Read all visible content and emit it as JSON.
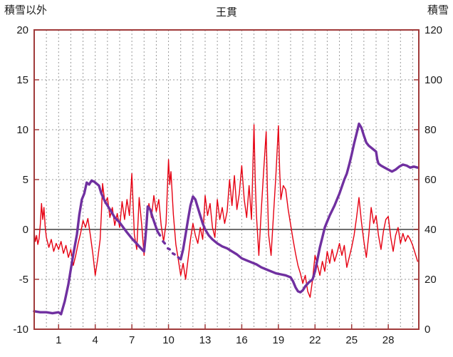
{
  "header": {
    "title": "王貫",
    "left_axis_title": "積雪以外",
    "right_axis_title": "積雪"
  },
  "chart_data": {
    "type": "line",
    "title": "王貫",
    "legend_position": "none",
    "grid": true,
    "colors": {
      "frame": "#a03a3a",
      "grid": "#9a9a9a",
      "zero_line": "#707070",
      "text": "#1a1a1a",
      "background": "#ffffff"
    },
    "x_axis": {
      "min": -1,
      "max": 30.5,
      "tick_labels": [
        1,
        4,
        7,
        10,
        13,
        16,
        19,
        22,
        25,
        28
      ],
      "gridline_start": 0,
      "gridline_end": 30,
      "gridline_step": 1
    },
    "left_axis": {
      "label": "積雪以外",
      "min": -10,
      "max": 20,
      "ticks": [
        20,
        15,
        10,
        5,
        0,
        -5,
        -10
      ]
    },
    "right_axis": {
      "label": "積雪",
      "min": 0,
      "max": 120,
      "ticks": [
        120,
        100,
        80,
        60,
        40,
        20,
        0
      ]
    },
    "series": [
      {
        "name": "積雪以外",
        "axis": "left",
        "color": "#e60012",
        "width": 1.4,
        "points": [
          [
            -1.0,
            -0.3
          ],
          [
            -0.9,
            -1.2
          ],
          [
            -0.8,
            -0.6
          ],
          [
            -0.7,
            -1.5
          ],
          [
            -0.6,
            -0.9
          ],
          [
            -0.5,
            0.5
          ],
          [
            -0.4,
            2.6
          ],
          [
            -0.3,
            1.0
          ],
          [
            -0.2,
            2.2
          ],
          [
            -0.1,
            0.3
          ],
          [
            0.0,
            -0.8
          ],
          [
            0.2,
            -1.8
          ],
          [
            0.4,
            -1.0
          ],
          [
            0.6,
            -2.2
          ],
          [
            0.8,
            -1.4
          ],
          [
            1.0,
            -2.0
          ],
          [
            1.2,
            -1.2
          ],
          [
            1.4,
            -2.4
          ],
          [
            1.6,
            -1.6
          ],
          [
            1.8,
            -2.8
          ],
          [
            2.0,
            -2.0
          ],
          [
            2.2,
            -3.6
          ],
          [
            2.4,
            -2.6
          ],
          [
            2.6,
            -1.4
          ],
          [
            2.8,
            -0.4
          ],
          [
            3.0,
            0.9
          ],
          [
            3.2,
            0.2
          ],
          [
            3.4,
            1.1
          ],
          [
            3.6,
            -0.6
          ],
          [
            3.8,
            -2.4
          ],
          [
            4.0,
            -4.6
          ],
          [
            4.2,
            -3.0
          ],
          [
            4.4,
            -1.0
          ],
          [
            4.5,
            1.5
          ],
          [
            4.6,
            4.6
          ],
          [
            4.8,
            2.6
          ],
          [
            5.0,
            3.2
          ],
          [
            5.2,
            1.2
          ],
          [
            5.4,
            2.2
          ],
          [
            5.6,
            0.4
          ],
          [
            5.8,
            1.6
          ],
          [
            6.0,
            0.2
          ],
          [
            6.2,
            2.8
          ],
          [
            6.4,
            1.0
          ],
          [
            6.6,
            3.0
          ],
          [
            6.8,
            1.4
          ],
          [
            7.0,
            5.6
          ],
          [
            7.1,
            2.5
          ],
          [
            7.2,
            -0.5
          ],
          [
            7.4,
            -2.0
          ],
          [
            7.6,
            3.2
          ],
          [
            7.8,
            0.5
          ],
          [
            8.0,
            -2.6
          ],
          [
            8.2,
            0.8
          ],
          [
            8.4,
            2.6
          ],
          [
            8.6,
            1.2
          ],
          [
            8.8,
            3.4
          ],
          [
            9.0,
            1.8
          ],
          [
            9.2,
            3.0
          ],
          [
            9.4,
            0.4
          ],
          [
            9.6,
            -1.2
          ],
          [
            9.8,
            0.6
          ],
          [
            10.0,
            7.0
          ],
          [
            10.1,
            4.5
          ],
          [
            10.2,
            5.8
          ],
          [
            10.4,
            1.5
          ],
          [
            10.6,
            -1.5
          ],
          [
            10.8,
            -3.0
          ],
          [
            11.0,
            -4.6
          ],
          [
            11.2,
            -3.4
          ],
          [
            11.4,
            -5.0
          ],
          [
            11.6,
            -3.0
          ],
          [
            11.8,
            -1.0
          ],
          [
            12.0,
            0.6
          ],
          [
            12.2,
            -0.6
          ],
          [
            12.4,
            -1.4
          ],
          [
            12.6,
            0.2
          ],
          [
            12.8,
            -1.0
          ],
          [
            13.0,
            3.4
          ],
          [
            13.2,
            1.4
          ],
          [
            13.4,
            2.6
          ],
          [
            13.6,
            0.2
          ],
          [
            13.8,
            -0.8
          ],
          [
            14.0,
            3.0
          ],
          [
            14.2,
            1.0
          ],
          [
            14.4,
            2.2
          ],
          [
            14.6,
            0.6
          ],
          [
            14.8,
            1.8
          ],
          [
            15.0,
            5.0
          ],
          [
            15.2,
            2.4
          ],
          [
            15.4,
            5.4
          ],
          [
            15.6,
            2.0
          ],
          [
            15.8,
            3.6
          ],
          [
            16.0,
            6.4
          ],
          [
            16.2,
            3.0
          ],
          [
            16.4,
            1.2
          ],
          [
            16.6,
            4.4
          ],
          [
            16.8,
            1.0
          ],
          [
            17.0,
            10.5
          ],
          [
            17.1,
            5.0
          ],
          [
            17.2,
            1.5
          ],
          [
            17.4,
            -2.6
          ],
          [
            17.6,
            2.0
          ],
          [
            17.8,
            6.0
          ],
          [
            18.0,
            9.8
          ],
          [
            18.1,
            4.0
          ],
          [
            18.2,
            -0.5
          ],
          [
            18.4,
            -2.6
          ],
          [
            18.6,
            1.5
          ],
          [
            18.8,
            5.5
          ],
          [
            19.0,
            10.4
          ],
          [
            19.1,
            6.0
          ],
          [
            19.2,
            3.0
          ],
          [
            19.4,
            4.4
          ],
          [
            19.6,
            4.0
          ],
          [
            19.8,
            2.0
          ],
          [
            20.0,
            0.5
          ],
          [
            20.2,
            -1.0
          ],
          [
            20.4,
            -2.4
          ],
          [
            20.6,
            -3.6
          ],
          [
            20.8,
            -4.4
          ],
          [
            21.0,
            -5.4
          ],
          [
            21.2,
            -4.6
          ],
          [
            21.4,
            -6.2
          ],
          [
            21.6,
            -6.8
          ],
          [
            21.8,
            -5.0
          ],
          [
            22.0,
            -2.6
          ],
          [
            22.2,
            -3.6
          ],
          [
            22.4,
            -4.6
          ],
          [
            22.6,
            -3.2
          ],
          [
            22.8,
            -4.2
          ],
          [
            23.0,
            -2.2
          ],
          [
            23.2,
            -3.4
          ],
          [
            23.4,
            -2.0
          ],
          [
            23.6,
            -3.2
          ],
          [
            23.8,
            -2.4
          ],
          [
            24.0,
            -1.4
          ],
          [
            24.2,
            -2.6
          ],
          [
            24.4,
            -1.6
          ],
          [
            24.6,
            -3.8
          ],
          [
            24.8,
            -2.8
          ],
          [
            25.0,
            -1.8
          ],
          [
            25.2,
            -0.6
          ],
          [
            25.4,
            1.2
          ],
          [
            25.6,
            3.2
          ],
          [
            25.8,
            0.8
          ],
          [
            26.0,
            -1.2
          ],
          [
            26.2,
            -2.8
          ],
          [
            26.4,
            -0.6
          ],
          [
            26.6,
            2.2
          ],
          [
            26.8,
            0.6
          ],
          [
            27.0,
            1.4
          ],
          [
            27.2,
            -0.6
          ],
          [
            27.4,
            -2.0
          ],
          [
            27.6,
            -0.2
          ],
          [
            27.8,
            1.0
          ],
          [
            28.0,
            1.3
          ],
          [
            28.2,
            -0.8
          ],
          [
            28.4,
            -2.2
          ],
          [
            28.6,
            -0.6
          ],
          [
            28.8,
            0.2
          ],
          [
            29.0,
            -1.4
          ],
          [
            29.2,
            -0.4
          ],
          [
            29.4,
            -1.2
          ],
          [
            29.6,
            -0.6
          ],
          [
            29.8,
            -1.0
          ],
          [
            30.0,
            -1.6
          ],
          [
            30.2,
            -2.4
          ],
          [
            30.4,
            -3.2
          ]
        ]
      },
      {
        "name": "積雪",
        "axis": "right",
        "color": "#7030a0",
        "width": 3.4,
        "points": [
          [
            -1.0,
            7.2
          ],
          [
            -0.5,
            6.8
          ],
          [
            0.0,
            6.8
          ],
          [
            0.5,
            6.4
          ],
          [
            1.0,
            6.8
          ],
          [
            1.2,
            6.0
          ],
          [
            1.5,
            11.2
          ],
          [
            1.8,
            18
          ],
          [
            2.0,
            24
          ],
          [
            2.2,
            30
          ],
          [
            2.5,
            38
          ],
          [
            2.7,
            46
          ],
          [
            2.9,
            52
          ],
          [
            3.1,
            54.4
          ],
          [
            3.3,
            58.8
          ],
          [
            3.5,
            58
          ],
          [
            3.7,
            59.6
          ],
          [
            3.9,
            59.2
          ],
          [
            4.1,
            58.4
          ],
          [
            4.3,
            57.6
          ],
          [
            4.5,
            54.4
          ],
          [
            4.8,
            51.2
          ],
          [
            5.0,
            49.6
          ],
          [
            5.3,
            47.2
          ],
          [
            5.6,
            44.8
          ],
          [
            6.0,
            42.8
          ],
          [
            6.3,
            40.8
          ],
          [
            6.6,
            38.8
          ],
          [
            7.0,
            36.4
          ],
          [
            7.3,
            34.8
          ],
          [
            7.6,
            33.2
          ],
          [
            7.9,
            31.6
          ],
          [
            8.0,
            31.2
          ],
          [
            8.1,
            36
          ],
          [
            8.2,
            42
          ],
          [
            8.3,
            49.2
          ],
          [
            8.5,
            48
          ],
          [
            8.7,
            44.8
          ],
          [
            8.9,
            42
          ],
          [
            9.1,
            39.2
          ],
          [
            9.3,
            37.6
          ],
          null,
          [
            9.55,
            35.2
          ],
          [
            9.7,
            34.4
          ],
          null,
          [
            9.95,
            32.4
          ],
          [
            10.1,
            32
          ],
          null,
          [
            10.35,
            30.4
          ],
          [
            10.5,
            30
          ],
          null,
          [
            10.8,
            28.8
          ],
          [
            11.0,
            28
          ],
          [
            11.2,
            32
          ],
          [
            11.4,
            38
          ],
          [
            11.6,
            44
          ],
          [
            11.8,
            49.6
          ],
          [
            12.0,
            53.2
          ],
          [
            12.2,
            52
          ],
          [
            12.4,
            48.8
          ],
          [
            12.6,
            45.6
          ],
          [
            12.8,
            42.4
          ],
          [
            13.0,
            40
          ],
          [
            13.3,
            37.6
          ],
          [
            13.6,
            36
          ],
          [
            14.0,
            34.4
          ],
          [
            14.4,
            33.2
          ],
          [
            14.8,
            32.4
          ],
          [
            15.2,
            31.2
          ],
          [
            15.6,
            30
          ],
          [
            16.0,
            28.4
          ],
          [
            16.4,
            27.6
          ],
          [
            16.8,
            26.8
          ],
          [
            17.2,
            26
          ],
          [
            17.6,
            24.8
          ],
          [
            18.0,
            24
          ],
          [
            18.4,
            23.2
          ],
          [
            18.8,
            22.4
          ],
          [
            19.2,
            22
          ],
          [
            19.6,
            21.6
          ],
          [
            20.0,
            20.8
          ],
          [
            20.2,
            19.2
          ],
          [
            20.4,
            16.8
          ],
          [
            20.6,
            15.2
          ],
          [
            20.8,
            14.8
          ],
          [
            21.0,
            15.6
          ],
          [
            21.2,
            17.2
          ],
          [
            21.5,
            18.8
          ],
          [
            21.8,
            20
          ],
          [
            22.0,
            23.2
          ],
          [
            22.2,
            28
          ],
          [
            22.4,
            32.8
          ],
          [
            22.6,
            36.8
          ],
          [
            22.8,
            40.8
          ],
          [
            23.0,
            43.2
          ],
          [
            23.2,
            45.6
          ],
          [
            23.4,
            47.6
          ],
          [
            23.6,
            49.6
          ],
          [
            23.8,
            52
          ],
          [
            24.0,
            54.4
          ],
          [
            24.2,
            57.2
          ],
          [
            24.4,
            60
          ],
          [
            24.6,
            62.4
          ],
          [
            24.8,
            66
          ],
          [
            25.0,
            70
          ],
          [
            25.2,
            74.4
          ],
          [
            25.4,
            78.4
          ],
          [
            25.6,
            82.4
          ],
          [
            25.8,
            80.8
          ],
          [
            26.0,
            77.6
          ],
          [
            26.2,
            74.8
          ],
          [
            26.4,
            73.6
          ],
          [
            26.6,
            72.8
          ],
          [
            26.8,
            72
          ],
          [
            27.0,
            71.2
          ],
          [
            27.1,
            68
          ],
          [
            27.2,
            66.4
          ],
          [
            27.4,
            65.6
          ],
          [
            27.7,
            64.8
          ],
          [
            28.0,
            64
          ],
          [
            28.3,
            63.2
          ],
          [
            28.6,
            64
          ],
          [
            28.9,
            65.2
          ],
          [
            29.2,
            66
          ],
          [
            29.5,
            65.6
          ],
          [
            29.8,
            64.8
          ],
          [
            30.1,
            65.2
          ],
          [
            30.4,
            64.8
          ]
        ]
      }
    ]
  }
}
